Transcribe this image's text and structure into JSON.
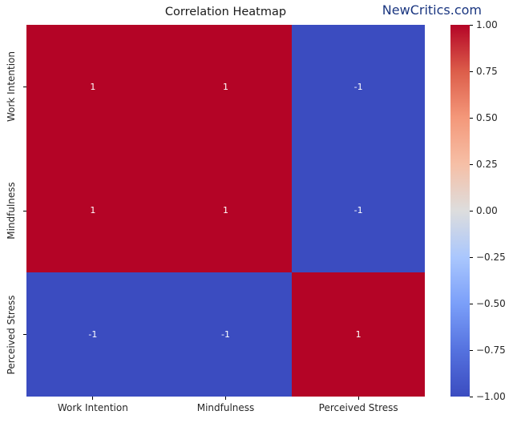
{
  "title": "Correlation Heatmap",
  "watermark": "NewCritics.com",
  "colors": {
    "positive_cell": "#b40426",
    "negative_cell": "#3b4cc0",
    "annotation_text": "#ffffff",
    "watermark_text": "#1a3680",
    "axis_text": "#262626"
  },
  "chart_data": {
    "type": "heatmap",
    "title": "Correlation Heatmap",
    "x_categories": [
      "Work Intention",
      "Mindfulness",
      "Perceived Stress"
    ],
    "y_categories": [
      "Work Intention",
      "Mindfulness",
      "Perceived Stress"
    ],
    "matrix": [
      [
        1,
        1,
        -1
      ],
      [
        1,
        1,
        -1
      ],
      [
        -1,
        -1,
        1
      ]
    ],
    "cell_labels": [
      [
        "1",
        "1",
        "-1"
      ],
      [
        "1",
        "1",
        "-1"
      ],
      [
        "-1",
        "-1",
        "1"
      ]
    ],
    "colormap": "coolwarm",
    "vmin": -1,
    "vmax": 1,
    "colorbar_ticks": [
      "1.00",
      "0.75",
      "0.50",
      "0.25",
      "0.00",
      "−0.25",
      "−0.50",
      "−0.75",
      "−1.00"
    ],
    "legend_position": "right",
    "grid": false
  }
}
